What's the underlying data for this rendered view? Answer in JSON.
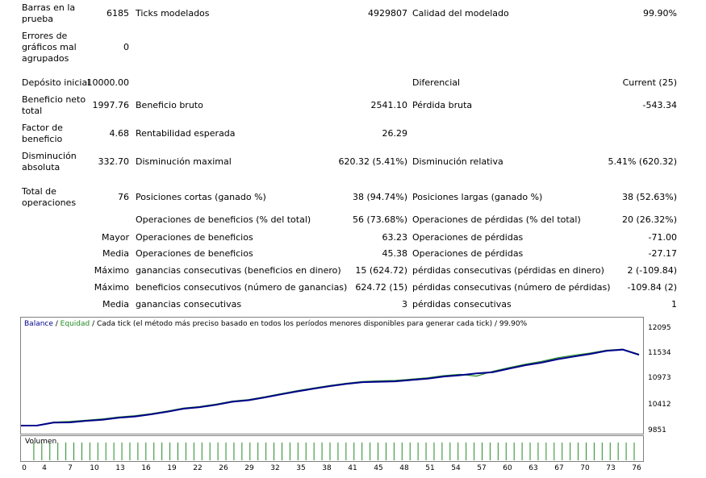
{
  "report": {
    "barras_label": "Barras en la prueba",
    "barras_value": "6185",
    "ticks_label": "Ticks modelados",
    "ticks_value": "4929807",
    "calidad_label": "Calidad del modelado",
    "calidad_value": "99.90%",
    "errores_label": "Errores de gráficos mal agrupados",
    "errores_value": "0",
    "deposito_label": "Depósito inicial",
    "deposito_value": "10000.00",
    "diferencial_label": "Diferencial",
    "diferencial_value": "Current (25)",
    "beneficio_neto_label": "Beneficio neto total",
    "beneficio_neto_value": "1997.76",
    "beneficio_bruto_label": "Beneficio bruto",
    "beneficio_bruto_value": "2541.10",
    "perdida_bruta_label": "Pérdida bruta",
    "perdida_bruta_value": "-543.34",
    "factor_label": "Factor de beneficio",
    "factor_value": "4.68",
    "rentabilidad_label": "Rentabilidad esperada",
    "rentabilidad_value": "26.29",
    "dism_abs_label": "Disminución absoluta",
    "dism_abs_value": "332.70",
    "dism_max_label": "Disminución maximal",
    "dism_max_value": "620.32 (5.41%)",
    "dism_rel_label": "Disminución relativa",
    "dism_rel_value": "5.41% (620.32)",
    "total_ops_label": "Total de operaciones",
    "total_ops_value": "76",
    "cortas_label": "Posiciones cortas (ganado %)",
    "cortas_value": "38 (94.74%)",
    "largas_label": "Posiciones largas (ganado %)",
    "largas_value": "38 (52.63%)",
    "ops_benef_pct_label": "Operaciones de beneficios (% del total)",
    "ops_benef_pct_value": "56 (73.68%)",
    "ops_perd_pct_label": "Operaciones de pérdidas (% del total)",
    "ops_perd_pct_value": "20 (26.32%)",
    "mayor_label": "Mayor",
    "mayor_benef_label": "Operaciones de beneficios",
    "mayor_benef_value": "63.23",
    "mayor_perd_label": "Operaciones de pérdidas",
    "mayor_perd_value": "-71.00",
    "media_label": "Media",
    "media_benef_label": "Operaciones de beneficios",
    "media_benef_value": "45.38",
    "media_perd_label": "Operaciones de pérdidas",
    "media_perd_value": "-27.17",
    "maximo1_label": "Máximo",
    "maximo1_gan_label": "ganancias consecutivas (beneficios en dinero)",
    "maximo1_gan_value": "15 (624.72)",
    "maximo1_perd_label": "pérdidas consecutivas (pérdidas en dinero)",
    "maximo1_perd_value": "2 (-109.84)",
    "maximo2_label": "Máximo",
    "maximo2_gan_label": "beneficios consecutivos (número de ganancias)",
    "maximo2_gan_value": "624.72 (15)",
    "maximo2_perd_label": "pérdidas consecutivas (número de pérdidas)",
    "maximo2_perd_value": "-109.84 (2)",
    "media2_label": "Media",
    "media2_gan_label": "ganancias consecutivas",
    "media2_gan_value": "3",
    "media2_perd_label": "pérdidas consecutivas",
    "media2_perd_value": "1"
  },
  "chart_title": {
    "balance": "Balance",
    "sep1": " / ",
    "equidad": "Equidad",
    "rest": " / Cada tick (el método más preciso basado en todos los períodos menores disponibles para generar cada tick)  / 99.90%"
  },
  "volume_label": "Volumen",
  "colors": {
    "balance": "#00008b",
    "equidad": "#228b22",
    "volume": "#228b22"
  },
  "chart_data": {
    "type": "line",
    "yticks": [
      "12095",
      "11534",
      "10973",
      "10412",
      "9851"
    ],
    "ylim": [
      9851,
      12095
    ],
    "xticks": [
      "0",
      "4",
      "7",
      "10",
      "13",
      "16",
      "19",
      "22",
      "26",
      "29",
      "32",
      "35",
      "38",
      "41",
      "45",
      "48",
      "51",
      "54",
      "57",
      "60",
      "63",
      "67",
      "70",
      "73",
      "76"
    ],
    "xlim": [
      0,
      76
    ],
    "series": [
      {
        "name": "Balance",
        "x": [
          0,
          2,
          4,
          6,
          8,
          10,
          12,
          14,
          16,
          18,
          20,
          22,
          24,
          26,
          28,
          30,
          32,
          34,
          36,
          38,
          40,
          42,
          44,
          46,
          48,
          50,
          52,
          54,
          56,
          58,
          60,
          62,
          64,
          66,
          68,
          70,
          72,
          74,
          76
        ],
        "values": [
          9851,
          9853,
          9920,
          9925,
          9960,
          9985,
          10030,
          10060,
          10110,
          10170,
          10240,
          10275,
          10330,
          10400,
          10435,
          10500,
          10570,
          10640,
          10700,
          10760,
          10810,
          10850,
          10860,
          10870,
          10900,
          10930,
          10980,
          11010,
          11050,
          11080,
          11160,
          11240,
          11300,
          11380,
          11440,
          11500,
          11570,
          11600,
          11480
        ]
      },
      {
        "name": "Equidad",
        "x": [
          0,
          2,
          4,
          6,
          8,
          10,
          12,
          14,
          16,
          18,
          20,
          22,
          24,
          26,
          28,
          30,
          32,
          34,
          36,
          38,
          40,
          42,
          44,
          46,
          48,
          50,
          52,
          54,
          56,
          58,
          60,
          62,
          64,
          66,
          68,
          70,
          72,
          74,
          76
        ],
        "values": [
          9851,
          9858,
          9930,
          9945,
          9975,
          10005,
          10050,
          10080,
          10125,
          10185,
          10255,
          10290,
          10345,
          10415,
          10450,
          10515,
          10585,
          10655,
          10715,
          10775,
          10825,
          10865,
          10880,
          10890,
          10920,
          10950,
          11000,
          11030,
          10990,
          11100,
          11185,
          11265,
          11330,
          11410,
          11470,
          11520,
          11585,
          11610,
          11495
        ]
      }
    ],
    "volume": {
      "x": [
        1,
        2,
        3,
        4,
        5,
        6,
        7,
        8,
        9,
        10,
        11,
        12,
        13,
        14,
        15,
        16,
        17,
        18,
        19,
        20,
        21,
        22,
        23,
        24,
        25,
        26,
        27,
        28,
        29,
        30,
        31,
        32,
        33,
        34,
        35,
        36,
        37,
        38,
        39,
        40,
        41,
        42,
        43,
        44,
        45,
        46,
        47,
        48,
        49,
        50,
        51,
        52,
        53,
        54,
        55,
        56,
        57,
        58,
        59,
        60,
        61,
        62,
        63,
        64,
        65,
        66,
        67,
        68,
        69,
        70,
        71,
        72,
        73,
        74,
        75,
        76
      ],
      "values": [
        1,
        1,
        1,
        1,
        1,
        1,
        1,
        1,
        1,
        1,
        1,
        1,
        1,
        1,
        1,
        1,
        1,
        1,
        1,
        1,
        1,
        1,
        1,
        1,
        1,
        1,
        1,
        1,
        1,
        1,
        1,
        1,
        1,
        1,
        1,
        1,
        1,
        1,
        1,
        1,
        1,
        1,
        1,
        1,
        1,
        1,
        1,
        1,
        1,
        1,
        1,
        1,
        1,
        1,
        1,
        1,
        1,
        1,
        1,
        1,
        1,
        1,
        1,
        1,
        1,
        1,
        1,
        1,
        1,
        1,
        1,
        1,
        1,
        1,
        1,
        1
      ]
    }
  }
}
